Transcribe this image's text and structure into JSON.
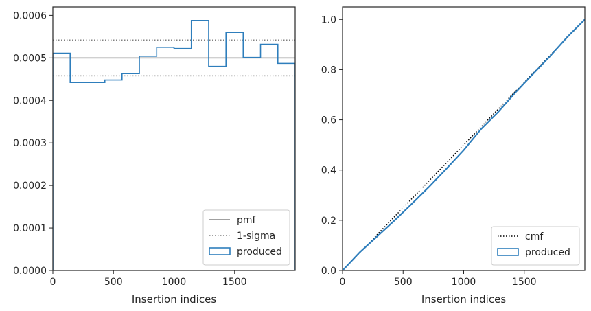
{
  "chart_data": [
    {
      "type": "step",
      "title": "",
      "xlabel": "Insertion indices",
      "ylabel": "",
      "xlim": [
        0,
        2000
      ],
      "ylim": [
        0,
        0.00062
      ],
      "xticks": [
        0,
        500,
        1000,
        1500
      ],
      "xtick_labels": [
        "0",
        "500",
        "1000",
        "1500"
      ],
      "yticks": [
        0,
        0.0001,
        0.0002,
        0.0003,
        0.0004,
        0.0005,
        0.0006
      ],
      "ytick_labels": [
        "0.0000",
        "0.0001",
        "0.0002",
        "0.0003",
        "0.0004",
        "0.0005",
        "0.0006"
      ],
      "grid": false,
      "legend_position": "lower-right",
      "series": [
        {
          "name": "pmf",
          "style": "solid",
          "color": "#808080",
          "value": 0.0005
        },
        {
          "name": "1-sigma",
          "style": "dotted",
          "color": "#808080",
          "values": [
            0.000458,
            0.000542
          ]
        },
        {
          "name": "produced",
          "style": "step",
          "color": "#2e7ebc",
          "bin_edges": [
            0,
            143,
            286,
            429,
            571,
            714,
            857,
            1000,
            1143,
            1286,
            1429,
            1571,
            1714,
            1857,
            2000
          ],
          "values": [
            0.000511,
            0.000442,
            0.000442,
            0.000448,
            0.000463,
            0.000504,
            0.000525,
            0.000522,
            0.000588,
            0.00048,
            0.00056,
            0.000501,
            0.000532,
            0.000487
          ]
        }
      ]
    },
    {
      "type": "line",
      "title": "",
      "xlabel": "Insertion indices",
      "ylabel": "",
      "xlim": [
        0,
        2000
      ],
      "ylim": [
        0,
        1.05
      ],
      "xticks": [
        0,
        500,
        1000,
        1500
      ],
      "xtick_labels": [
        "0",
        "500",
        "1000",
        "1500"
      ],
      "yticks": [
        0,
        0.2,
        0.4,
        0.6,
        0.8,
        1.0
      ],
      "ytick_labels": [
        "0.0",
        "0.2",
        "0.4",
        "0.6",
        "0.8",
        "1.0"
      ],
      "grid": false,
      "legend_position": "lower-right",
      "series": [
        {
          "name": "cmf",
          "style": "dotted",
          "color": "#000000",
          "x": [
            0,
            2000
          ],
          "y": [
            0,
            1.0
          ]
        },
        {
          "name": "produced",
          "style": "solid",
          "color": "#2e7ebc",
          "x": [
            0,
            143,
            286,
            429,
            571,
            714,
            857,
            1000,
            1143,
            1286,
            1429,
            1571,
            1714,
            1857,
            2000
          ],
          "y": [
            0,
            0.073,
            0.136,
            0.199,
            0.265,
            0.333,
            0.405,
            0.479,
            0.563,
            0.632,
            0.71,
            0.782,
            0.854,
            0.931,
            1.0
          ]
        }
      ]
    }
  ]
}
